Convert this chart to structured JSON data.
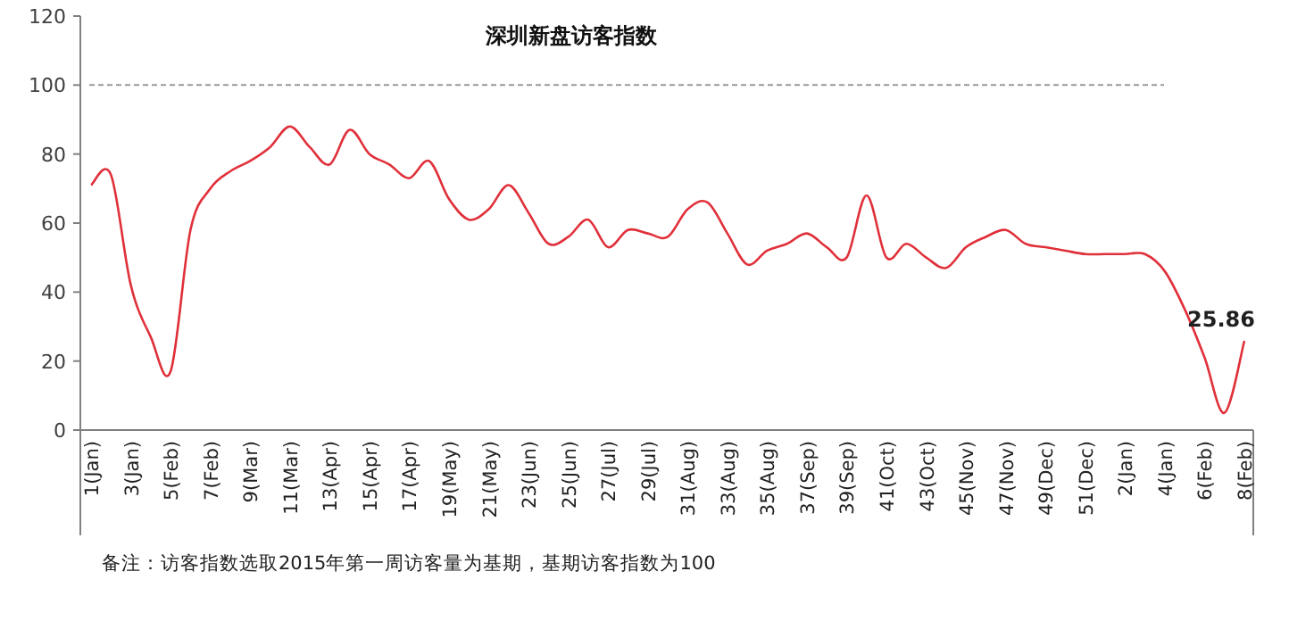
{
  "chart_data": {
    "type": "line",
    "title": "深圳新盘访客指数",
    "annotations": [
      "备注：访客指数选取2015年第一周访客量为基期，基期访客指数为100"
    ],
    "categories": [
      "1(Jan)",
      null,
      "3(Jan)",
      null,
      "5(Feb)",
      null,
      "7(Feb)",
      null,
      "9(Mar)",
      null,
      "11(Mar)",
      null,
      "13(Apr)",
      null,
      "15(Apr)",
      null,
      "17(Apr)",
      null,
      "19(May)",
      null,
      "21(May)",
      null,
      "23(Jun)",
      null,
      "25(Jun)",
      null,
      "27(Jul)",
      null,
      "29(Jul)",
      null,
      "31(Aug)",
      null,
      "33(Aug)",
      null,
      "35(Aug)",
      null,
      "37(Sep)",
      null,
      "39(Sep)",
      null,
      "41(Oct)",
      null,
      "43(Oct)",
      null,
      "45(Nov)",
      null,
      "47(Nov)",
      null,
      "49(Dec)",
      null,
      "51(Dec)",
      null,
      "2(Jan)",
      null,
      "4(Jan)",
      null,
      "6(Feb)",
      null,
      "8(Feb)"
    ],
    "values": [
      71,
      74,
      42,
      27,
      17,
      58,
      70,
      75,
      78,
      82,
      88,
      82,
      77,
      87,
      80,
      77,
      73,
      78,
      67,
      61,
      64,
      71,
      63,
      54,
      56,
      61,
      53,
      58,
      57,
      56,
      64,
      66,
      57,
      48,
      52,
      54,
      57,
      53,
      50,
      68,
      50,
      54,
      50,
      47,
      53,
      56,
      58,
      54,
      53,
      52,
      51,
      51,
      51,
      51,
      46,
      35,
      21,
      5,
      25.86
    ],
    "value_labels": [
      null,
      null,
      null,
      null,
      null,
      null,
      null,
      null,
      null,
      null,
      null,
      null,
      null,
      null,
      null,
      null,
      null,
      null,
      null,
      null,
      null,
      null,
      null,
      null,
      null,
      null,
      null,
      null,
      null,
      null,
      null,
      null,
      null,
      null,
      null,
      null,
      null,
      null,
      null,
      null,
      null,
      null,
      null,
      null,
      null,
      null,
      null,
      null,
      null,
      null,
      null,
      null,
      null,
      null,
      null,
      null,
      null,
      null,
      "25.86"
    ],
    "color": "#e0303a",
    "ylim": [
      0,
      120
    ],
    "yticks": [
      0,
      20,
      40,
      60,
      80,
      100,
      120
    ],
    "ref_lines": [
      {
        "axis": "y",
        "value": 100,
        "color": "#999999",
        "line_style": "dashed"
      }
    ]
  }
}
